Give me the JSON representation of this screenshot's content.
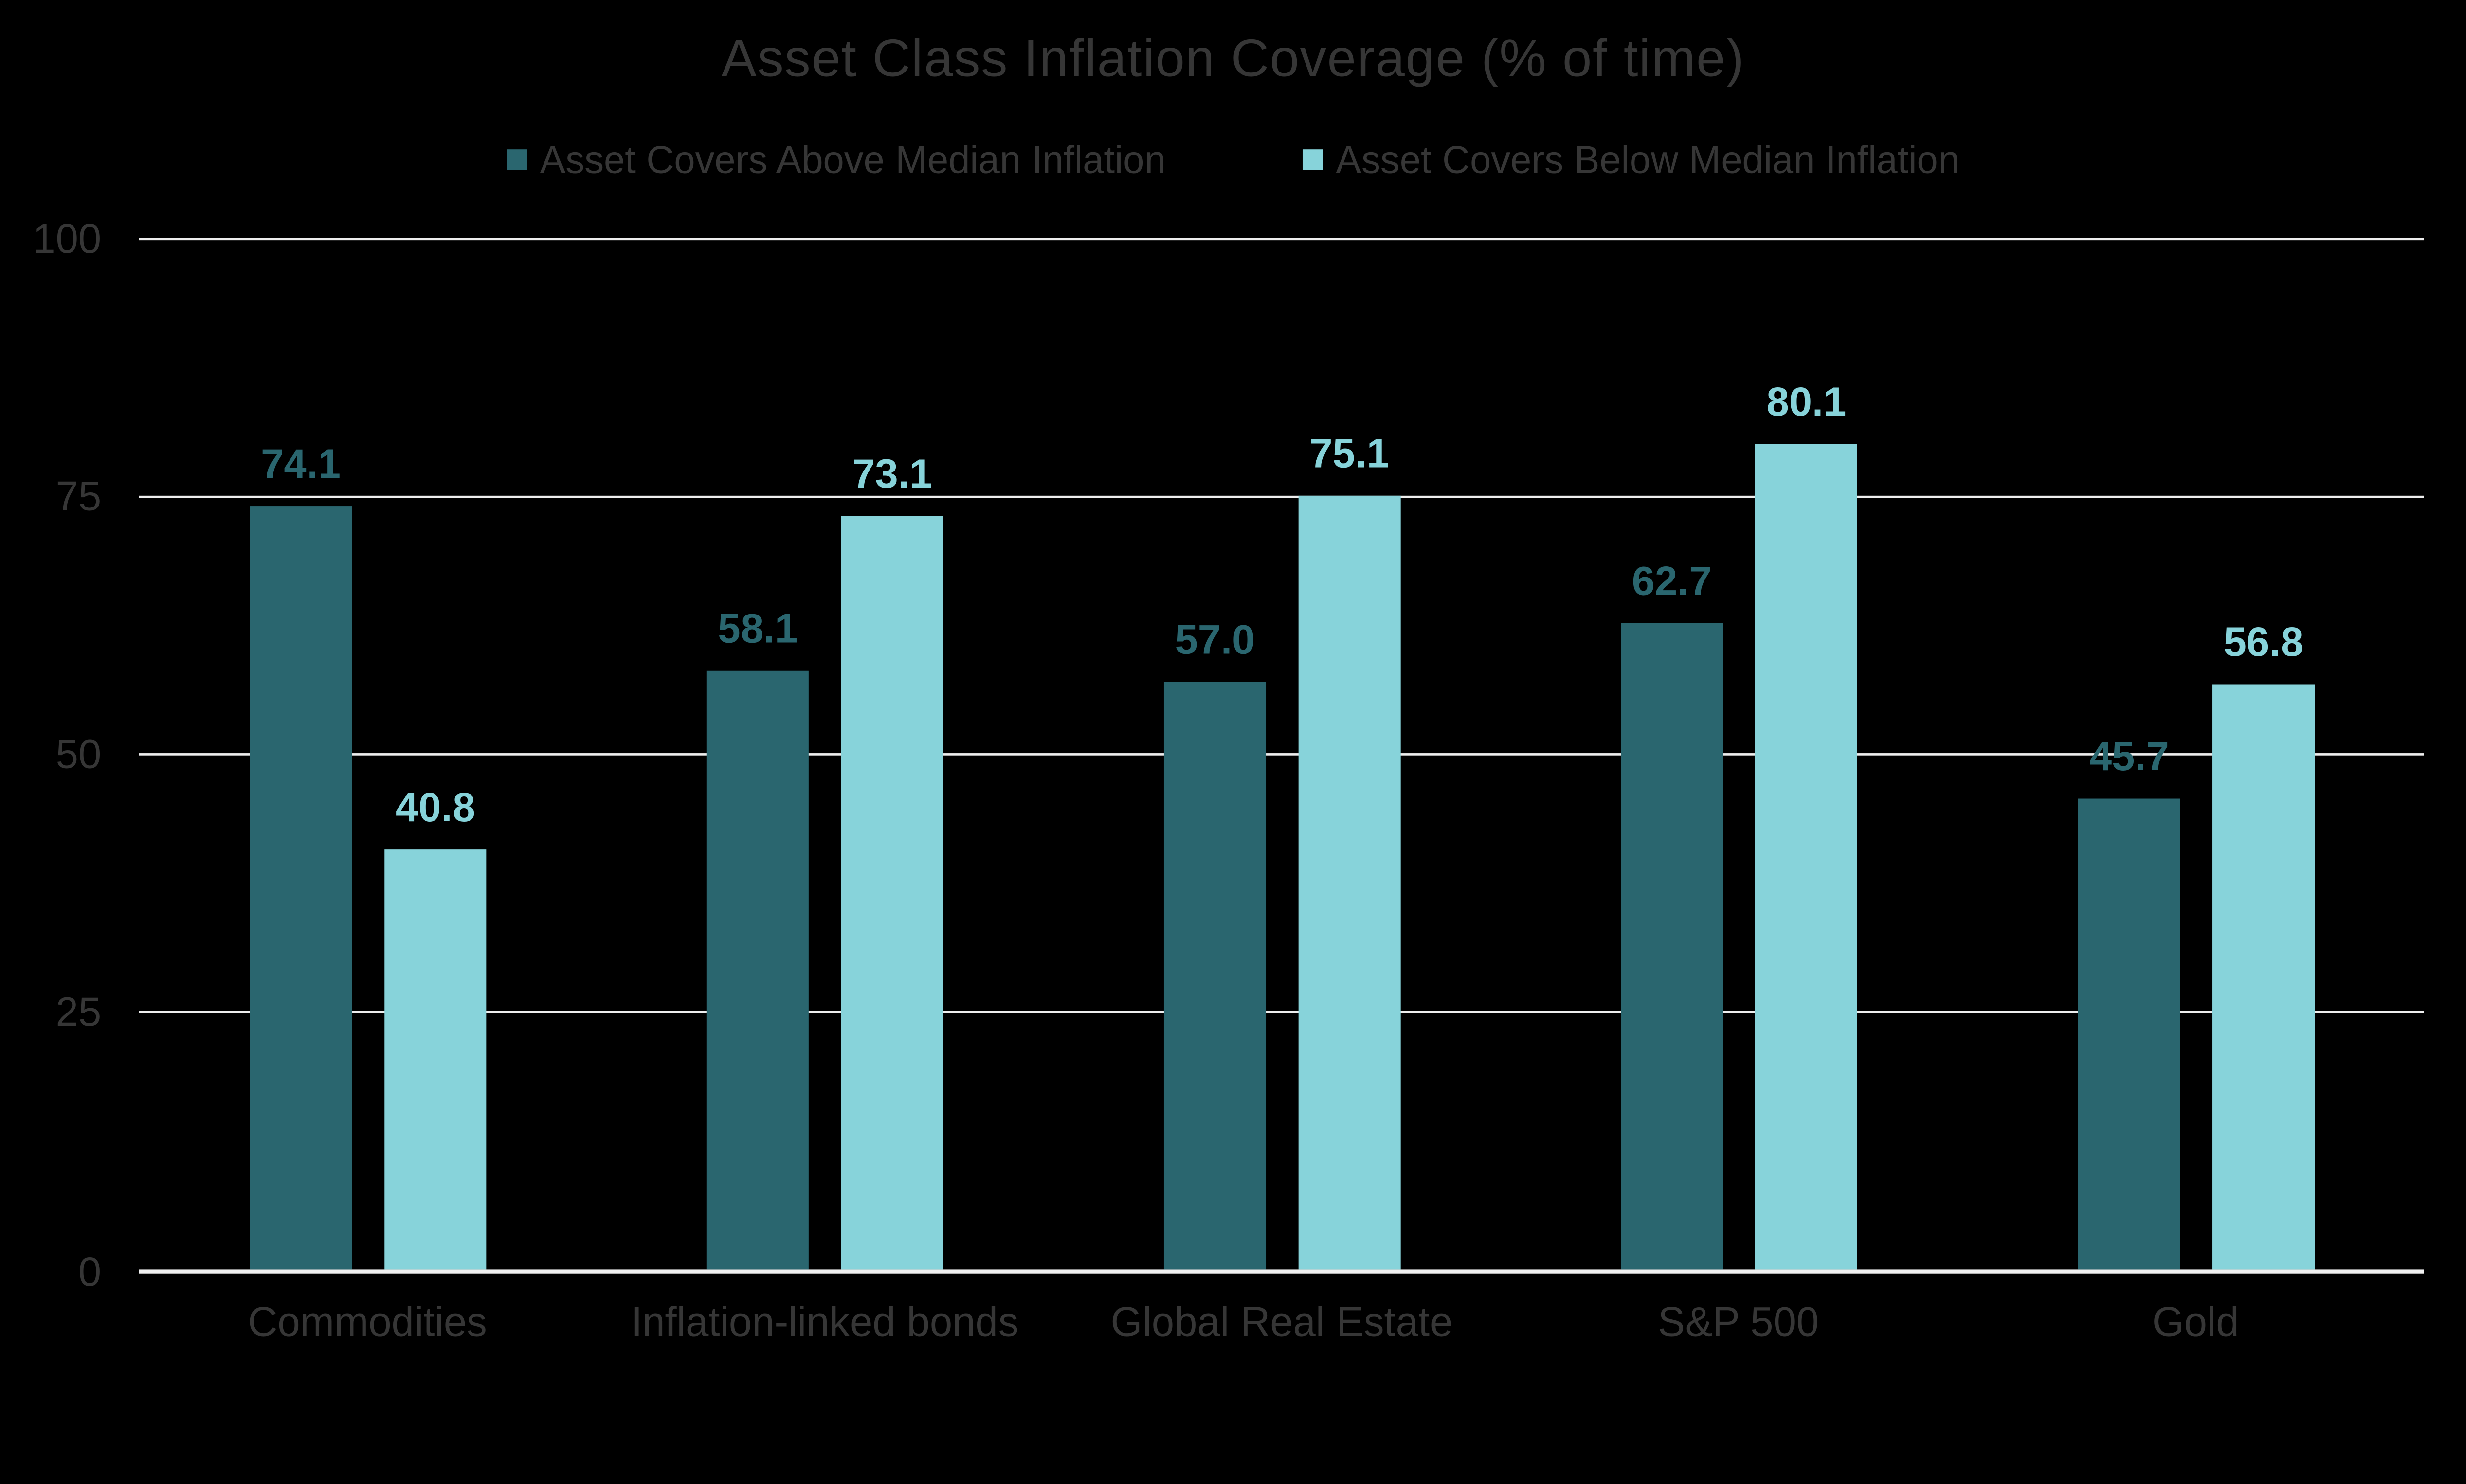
{
  "title": "Asset Class Inflation Coverage (% of time)",
  "colors": {
    "background": "#000000",
    "text": "#363636",
    "gridline": "#eeeeee",
    "baseline": "#f1f1f1",
    "series_above": "#2A666F",
    "series_below": "#87D3DA"
  },
  "legend": {
    "items": [
      {
        "label": "Asset Covers Above Median Inflation",
        "color": "#2A666F"
      },
      {
        "label": "Asset Covers Below Median Inflation",
        "color": "#87D3DA"
      }
    ]
  },
  "y_axis": {
    "tick_labels": [
      "100",
      "75",
      "50",
      "25",
      "0"
    ],
    "tick_values": [
      100,
      75,
      50,
      25,
      0
    ]
  },
  "chart_data": {
    "type": "bar",
    "title": "Asset Class Inflation Coverage (% of time)",
    "categories": [
      "Commodities",
      "Inflation-linked bonds",
      "Global Real Estate",
      "S&P 500",
      "Gold"
    ],
    "series": [
      {
        "name": "Asset Covers Above Median Inflation",
        "color": "#2A666F",
        "values": [
          74.1,
          58.1,
          57.0,
          62.7,
          45.7
        ]
      },
      {
        "name": "Asset Covers Below Median Inflation",
        "color": "#87D3DA",
        "values": [
          40.8,
          73.1,
          75.1,
          80.1,
          56.8
        ]
      }
    ],
    "xlabel": "",
    "ylabel": "",
    "ylim": [
      0,
      100
    ],
    "yticks": [
      0,
      25,
      50,
      75,
      100
    ],
    "grid": true,
    "legend_position": "top",
    "data_labels": true,
    "data_label_format": "one_decimal"
  }
}
